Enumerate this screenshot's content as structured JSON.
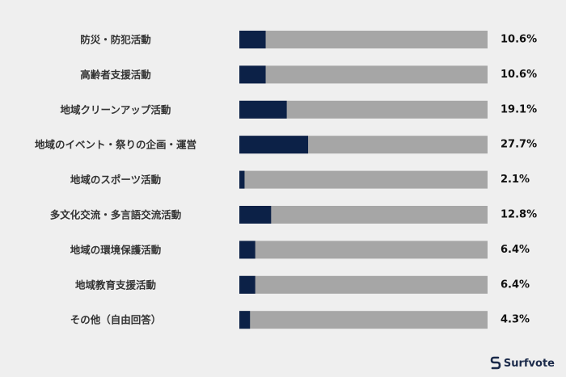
{
  "chart_data": {
    "type": "bar",
    "orientation": "horizontal",
    "categories": [
      "防災・防犯活動",
      "高齢者支援活動",
      "地域クリーンアップ活動",
      "地域のイベント・祭りの企画・運営",
      "地域のスポーツ活動",
      "多文化交流・多言語交流活動",
      "地域の環境保護活動",
      "地域教育支援活動",
      "その他（自由回答）"
    ],
    "values": [
      10.6,
      10.6,
      19.1,
      27.7,
      2.1,
      12.8,
      6.4,
      6.4,
      4.3
    ],
    "value_labels": [
      "10.6%",
      "10.6%",
      "19.1%",
      "27.7%",
      "2.1%",
      "12.8%",
      "6.4%",
      "6.4%",
      "4.3%"
    ],
    "xlim": [
      0,
      100
    ],
    "unit": "%",
    "grid": false,
    "colors": {
      "bar": "#0c2147",
      "track": "#a6a6a6",
      "background": "#efefef"
    }
  },
  "brand": {
    "name": "Surfvote",
    "icon": "surfvote-logo-icon"
  }
}
